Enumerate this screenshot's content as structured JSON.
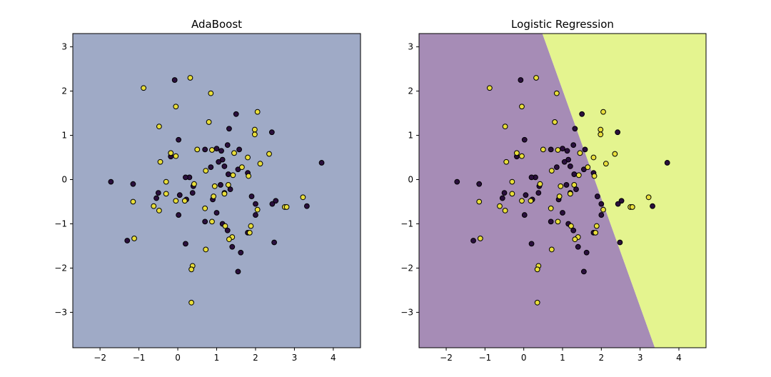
{
  "chart_data": [
    {
      "type": "scatter",
      "title": "AdaBoost",
      "xlabel": "",
      "ylabel": "",
      "xlim": [
        -2.7,
        4.7
      ],
      "ylim": [
        -3.8,
        3.3
      ],
      "xticks": [
        -2,
        -1,
        0,
        1,
        2,
        3,
        4
      ],
      "yticks": [
        -3,
        -2,
        -1,
        0,
        1,
        2,
        3
      ],
      "tick_labels_x": [
        "−2",
        "−1",
        "0",
        "1",
        "2",
        "3",
        "4"
      ],
      "tick_labels_y": [
        "−3",
        "−2",
        "−1",
        "0",
        "1",
        "2",
        "3"
      ],
      "background": "#9faac6",
      "decision_regions": [
        {
          "class": 0,
          "color": "#9faac6",
          "polygon": [
            [
              -2.7,
              -3.8
            ],
            [
              4.7,
              -3.8
            ],
            [
              4.7,
              3.3
            ],
            [
              -2.7,
              3.3
            ]
          ]
        }
      ],
      "grid": false,
      "legend": "none",
      "series": [
        {
          "class": 0,
          "color": "#2a0f3d",
          "points": [
            [
              -0.08,
              2.25
            ],
            [
              1.5,
              1.48
            ],
            [
              1.32,
              1.15
            ],
            [
              2.42,
              1.07
            ],
            [
              0.02,
              0.9
            ],
            [
              1.0,
              0.7
            ],
            [
              1.28,
              0.78
            ],
            [
              1.58,
              0.68
            ],
            [
              -0.18,
              0.52
            ],
            [
              0.7,
              0.68
            ],
            [
              1.12,
              0.65
            ],
            [
              1.15,
              0.45
            ],
            [
              1.2,
              0.3
            ],
            [
              1.05,
              0.4
            ],
            [
              0.85,
              0.28
            ],
            [
              1.55,
              0.23
            ],
            [
              1.8,
              0.15
            ],
            [
              1.3,
              0.12
            ],
            [
              0.3,
              0.05
            ],
            [
              0.2,
              0.05
            ],
            [
              -1.72,
              -0.05
            ],
            [
              -1.15,
              -0.1
            ],
            [
              0.4,
              -0.15
            ],
            [
              1.1,
              -0.12
            ],
            [
              1.35,
              -0.22
            ],
            [
              -0.5,
              -0.3
            ],
            [
              0.38,
              -0.3
            ],
            [
              0.05,
              -0.35
            ],
            [
              -0.55,
              -0.42
            ],
            [
              0.22,
              -0.45
            ],
            [
              1.2,
              -0.3
            ],
            [
              0.9,
              -0.45
            ],
            [
              1.9,
              -0.38
            ],
            [
              2.0,
              -0.55
            ],
            [
              2.43,
              -0.55
            ],
            [
              2.52,
              -0.48
            ],
            [
              3.32,
              -0.6
            ],
            [
              1.0,
              -0.75
            ],
            [
              0.02,
              -0.8
            ],
            [
              0.7,
              -0.95
            ],
            [
              1.15,
              -1.0
            ],
            [
              2.0,
              -0.8
            ],
            [
              1.28,
              -1.15
            ],
            [
              1.8,
              -1.2
            ],
            [
              -1.3,
              -1.38
            ],
            [
              0.2,
              -1.45
            ],
            [
              1.62,
              -1.65
            ],
            [
              1.4,
              -1.52
            ],
            [
              1.55,
              -2.08
            ],
            [
              2.48,
              -1.42
            ],
            [
              3.7,
              0.38
            ]
          ]
        },
        {
          "class": 1,
          "color": "#e8dd3b",
          "points": [
            [
              0.32,
              2.3
            ],
            [
              -0.88,
              2.07
            ],
            [
              0.85,
              1.95
            ],
            [
              -0.05,
              1.65
            ],
            [
              2.05,
              1.53
            ],
            [
              0.8,
              1.3
            ],
            [
              -0.48,
              1.2
            ],
            [
              1.98,
              1.13
            ],
            [
              1.98,
              1.02
            ],
            [
              0.5,
              0.68
            ],
            [
              0.88,
              0.67
            ],
            [
              1.45,
              0.6
            ],
            [
              -0.18,
              0.6
            ],
            [
              2.35,
              0.58
            ],
            [
              1.8,
              0.5
            ],
            [
              -0.05,
              0.53
            ],
            [
              -0.45,
              0.4
            ],
            [
              2.12,
              0.36
            ],
            [
              1.65,
              0.28
            ],
            [
              0.72,
              0.2
            ],
            [
              1.42,
              0.1
            ],
            [
              1.82,
              0.08
            ],
            [
              -0.3,
              -0.05
            ],
            [
              0.42,
              -0.1
            ],
            [
              0.95,
              -0.15
            ],
            [
              1.3,
              -0.12
            ],
            [
              -0.3,
              -0.32
            ],
            [
              1.2,
              -0.32
            ],
            [
              0.92,
              -0.38
            ],
            [
              -0.05,
              -0.48
            ],
            [
              0.18,
              -0.48
            ],
            [
              -1.15,
              -0.5
            ],
            [
              3.22,
              -0.4
            ],
            [
              2.75,
              -0.62
            ],
            [
              2.8,
              -0.62
            ],
            [
              -0.62,
              -0.6
            ],
            [
              -0.48,
              -0.7
            ],
            [
              0.7,
              -0.65
            ],
            [
              2.05,
              -0.68
            ],
            [
              0.88,
              -0.95
            ],
            [
              1.88,
              -1.05
            ],
            [
              1.22,
              -1.05
            ],
            [
              1.85,
              -1.2
            ],
            [
              1.4,
              -1.3
            ],
            [
              1.32,
              -1.35
            ],
            [
              -1.12,
              -1.33
            ],
            [
              0.72,
              -1.58
            ],
            [
              0.38,
              -1.95
            ],
            [
              0.35,
              -2.03
            ],
            [
              0.35,
              -2.78
            ]
          ]
        }
      ]
    },
    {
      "type": "scatter",
      "title": "Logistic Regression",
      "xlabel": "",
      "ylabel": "",
      "xlim": [
        -2.7,
        4.7
      ],
      "ylim": [
        -3.8,
        3.3
      ],
      "xticks": [
        -2,
        -1,
        0,
        1,
        2,
        3,
        4
      ],
      "yticks": [
        -3,
        -2,
        -1,
        0,
        1,
        2,
        3
      ],
      "tick_labels_x": [
        "−2",
        "−1",
        "0",
        "1",
        "2",
        "3",
        "4"
      ],
      "tick_labels_y": [
        "−3",
        "−2",
        "−1",
        "0",
        "1",
        "2",
        "3"
      ],
      "background": "#a68cb6",
      "decision_regions": [
        {
          "class": 0,
          "color": "#a68cb6",
          "polygon": [
            [
              -2.7,
              -3.8
            ],
            [
              3.38,
              -3.8
            ],
            [
              0.48,
              3.3
            ],
            [
              -2.7,
              3.3
            ]
          ]
        },
        {
          "class": 1,
          "color": "#e4f48f",
          "polygon": [
            [
              3.38,
              -3.8
            ],
            [
              4.7,
              -3.8
            ],
            [
              4.7,
              3.3
            ],
            [
              0.48,
              3.3
            ]
          ]
        }
      ],
      "grid": false,
      "legend": "none",
      "series": [
        {
          "class": 0,
          "color": "#2a0f3d",
          "points": [
            [
              -0.08,
              2.25
            ],
            [
              1.5,
              1.48
            ],
            [
              1.32,
              1.15
            ],
            [
              2.42,
              1.07
            ],
            [
              0.02,
              0.9
            ],
            [
              1.0,
              0.7
            ],
            [
              1.28,
              0.78
            ],
            [
              1.58,
              0.68
            ],
            [
              -0.18,
              0.52
            ],
            [
              0.7,
              0.68
            ],
            [
              1.12,
              0.65
            ],
            [
              1.15,
              0.45
            ],
            [
              1.2,
              0.3
            ],
            [
              1.05,
              0.4
            ],
            [
              0.85,
              0.28
            ],
            [
              1.55,
              0.23
            ],
            [
              1.8,
              0.15
            ],
            [
              1.3,
              0.12
            ],
            [
              0.3,
              0.05
            ],
            [
              0.2,
              0.05
            ],
            [
              -1.72,
              -0.05
            ],
            [
              -1.15,
              -0.1
            ],
            [
              0.4,
              -0.15
            ],
            [
              1.1,
              -0.12
            ],
            [
              1.35,
              -0.22
            ],
            [
              -0.5,
              -0.3
            ],
            [
              0.38,
              -0.3
            ],
            [
              0.05,
              -0.35
            ],
            [
              -0.55,
              -0.42
            ],
            [
              0.22,
              -0.45
            ],
            [
              1.2,
              -0.3
            ],
            [
              0.9,
              -0.45
            ],
            [
              1.9,
              -0.38
            ],
            [
              2.0,
              -0.55
            ],
            [
              2.43,
              -0.55
            ],
            [
              2.52,
              -0.48
            ],
            [
              3.32,
              -0.6
            ],
            [
              1.0,
              -0.75
            ],
            [
              0.02,
              -0.8
            ],
            [
              0.7,
              -0.95
            ],
            [
              1.15,
              -1.0
            ],
            [
              2.0,
              -0.8
            ],
            [
              1.28,
              -1.15
            ],
            [
              1.8,
              -1.2
            ],
            [
              -1.3,
              -1.38
            ],
            [
              0.2,
              -1.45
            ],
            [
              1.62,
              -1.65
            ],
            [
              1.4,
              -1.52
            ],
            [
              1.55,
              -2.08
            ],
            [
              2.48,
              -1.42
            ],
            [
              3.7,
              0.38
            ]
          ]
        },
        {
          "class": 1,
          "color": "#e8dd3b",
          "points": [
            [
              0.32,
              2.3
            ],
            [
              -0.88,
              2.07
            ],
            [
              0.85,
              1.95
            ],
            [
              -0.05,
              1.65
            ],
            [
              2.05,
              1.53
            ],
            [
              0.8,
              1.3
            ],
            [
              -0.48,
              1.2
            ],
            [
              1.98,
              1.13
            ],
            [
              1.98,
              1.02
            ],
            [
              0.5,
              0.68
            ],
            [
              0.88,
              0.67
            ],
            [
              1.45,
              0.6
            ],
            [
              -0.18,
              0.6
            ],
            [
              2.35,
              0.58
            ],
            [
              1.8,
              0.5
            ],
            [
              -0.05,
              0.53
            ],
            [
              -0.45,
              0.4
            ],
            [
              2.12,
              0.36
            ],
            [
              1.65,
              0.28
            ],
            [
              0.72,
              0.2
            ],
            [
              1.42,
              0.1
            ],
            [
              1.82,
              0.08
            ],
            [
              -0.3,
              -0.05
            ],
            [
              0.42,
              -0.1
            ],
            [
              0.95,
              -0.15
            ],
            [
              1.3,
              -0.12
            ],
            [
              -0.3,
              -0.32
            ],
            [
              1.2,
              -0.32
            ],
            [
              0.92,
              -0.38
            ],
            [
              -0.05,
              -0.48
            ],
            [
              0.18,
              -0.48
            ],
            [
              -1.15,
              -0.5
            ],
            [
              3.22,
              -0.4
            ],
            [
              2.75,
              -0.62
            ],
            [
              2.8,
              -0.62
            ],
            [
              -0.62,
              -0.6
            ],
            [
              -0.48,
              -0.7
            ],
            [
              0.7,
              -0.65
            ],
            [
              2.05,
              -0.68
            ],
            [
              0.88,
              -0.95
            ],
            [
              1.88,
              -1.05
            ],
            [
              1.22,
              -1.05
            ],
            [
              1.85,
              -1.2
            ],
            [
              1.4,
              -1.3
            ],
            [
              1.32,
              -1.35
            ],
            [
              -1.12,
              -1.33
            ],
            [
              0.72,
              -1.58
            ],
            [
              0.38,
              -1.95
            ],
            [
              0.35,
              -2.03
            ],
            [
              0.35,
              -2.78
            ]
          ]
        }
      ]
    }
  ]
}
